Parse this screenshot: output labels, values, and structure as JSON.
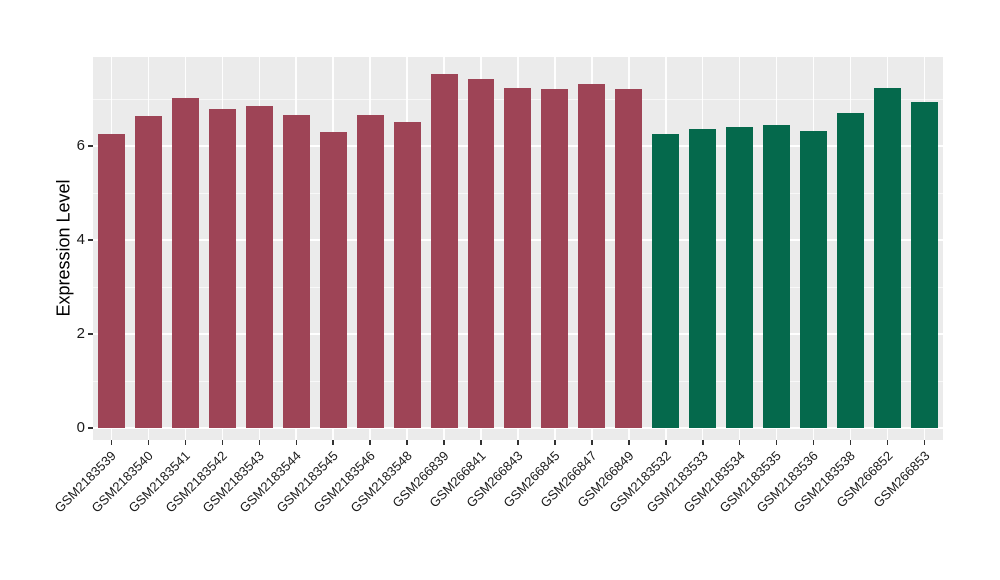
{
  "chart_data": {
    "type": "bar",
    "title": "",
    "xlabel": "",
    "ylabel": "Expression Level",
    "categories": [
      "GSM2183539",
      "GSM2183540",
      "GSM2183541",
      "GSM2183542",
      "GSM2183543",
      "GSM2183544",
      "GSM2183545",
      "GSM2183546",
      "GSM2183548",
      "GSM266839",
      "GSM266841",
      "GSM266843",
      "GSM266845",
      "GSM266847",
      "GSM266849",
      "GSM2183532",
      "GSM2183533",
      "GSM2183534",
      "GSM2183535",
      "GSM2183536",
      "GSM2183538",
      "GSM266852",
      "GSM266853"
    ],
    "values": [
      6.25,
      6.64,
      7.02,
      6.78,
      6.85,
      6.66,
      6.3,
      6.66,
      6.51,
      7.53,
      7.43,
      7.24,
      7.22,
      7.31,
      7.21,
      6.25,
      6.37,
      6.4,
      6.44,
      6.31,
      6.7,
      7.24,
      6.94
    ],
    "bar_colors": [
      "#9E4456",
      "#9E4456",
      "#9E4456",
      "#9E4456",
      "#9E4456",
      "#9E4456",
      "#9E4456",
      "#9E4456",
      "#9E4456",
      "#9E4456",
      "#9E4456",
      "#9E4456",
      "#9E4456",
      "#9E4456",
      "#9E4456",
      "#05694C",
      "#05694C",
      "#05694C",
      "#05694C",
      "#05694C",
      "#05694C",
      "#05694C",
      "#05694C"
    ],
    "group_colors": {
      "maroon_group": "#9E4456",
      "green_group": "#05694C"
    },
    "y_major_ticks": [
      0,
      2,
      4,
      6
    ],
    "y_minor_gridlines": [
      1,
      3,
      5,
      7
    ],
    "ylim": [
      -0.27,
      7.89
    ],
    "grid": "on",
    "legend_position": "none",
    "panel_background": "#EBEBEB",
    "gridline_color": "#FFFFFF",
    "x_tick_label_angle_deg": 45
  }
}
